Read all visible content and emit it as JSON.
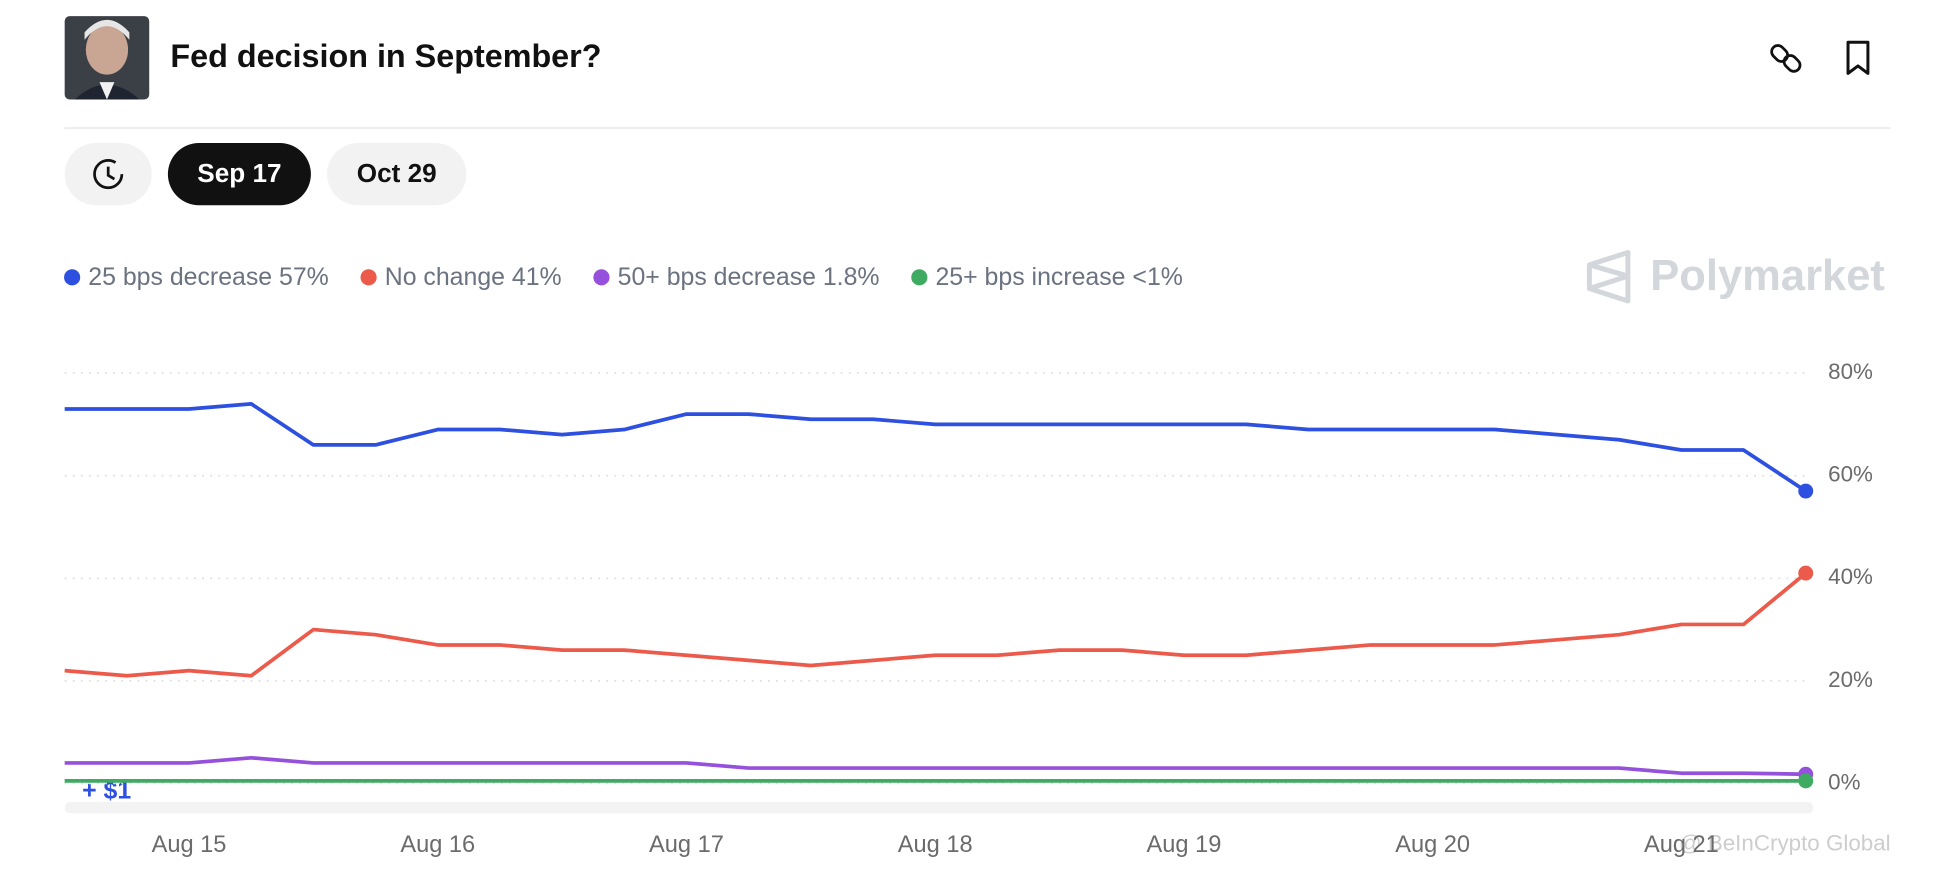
{
  "chart_data": {
    "type": "line",
    "title": "Fed decision in September?",
    "tabs": [
      "Sep 17",
      "Oct 29"
    ],
    "brand": "Polymarket",
    "annotation": "+ $1",
    "watermark": "@ BeInCrypto Global",
    "x": [
      14.5,
      14.75,
      15,
      15.25,
      15.5,
      15.75,
      16,
      16.25,
      16.5,
      16.75,
      17,
      17.25,
      17.5,
      17.75,
      18,
      18.25,
      18.5,
      18.75,
      19,
      19.25,
      19.5,
      19.75,
      20,
      20.25,
      20.5,
      20.75,
      21,
      21.25,
      21.5
    ],
    "xlim": [
      14.5,
      21.5
    ],
    "xticks": [
      {
        "value": 15,
        "label": "Aug 15"
      },
      {
        "value": 16,
        "label": "Aug 16"
      },
      {
        "value": 17,
        "label": "Aug 17"
      },
      {
        "value": 18,
        "label": "Aug 18"
      },
      {
        "value": 19,
        "label": "Aug 19"
      },
      {
        "value": 20,
        "label": "Aug 20"
      },
      {
        "value": 21,
        "label": "Aug 21"
      }
    ],
    "ylim": [
      0,
      80
    ],
    "yticks": [
      {
        "value": 0,
        "label": "0%"
      },
      {
        "value": 20,
        "label": "20%"
      },
      {
        "value": 40,
        "label": "40%"
      },
      {
        "value": 60,
        "label": "60%"
      },
      {
        "value": 80,
        "label": "80%"
      }
    ],
    "grid": true,
    "series": [
      {
        "name": "25 bps decrease 57%",
        "color": "#2e50e0",
        "values": [
          73,
          73,
          73,
          74,
          66,
          66,
          69,
          69,
          68,
          69,
          72,
          72,
          71,
          71,
          70,
          70,
          70,
          70,
          70,
          70,
          69,
          69,
          69,
          69,
          68,
          67,
          65,
          65,
          57
        ]
      },
      {
        "name": "No change 41%",
        "color": "#eb5a4b",
        "values": [
          22,
          21,
          22,
          21,
          30,
          29,
          27,
          27,
          26,
          26,
          25,
          24,
          23,
          24,
          25,
          25,
          26,
          26,
          25,
          25,
          26,
          27,
          27,
          27,
          28,
          29,
          31,
          31,
          41
        ]
      },
      {
        "name": "50+ bps decrease 1.8%",
        "color": "#9550dc",
        "values": [
          4,
          4,
          4,
          5,
          4,
          4,
          4,
          4,
          4,
          4,
          4,
          3,
          3,
          3,
          3,
          3,
          3,
          3,
          3,
          3,
          3,
          3,
          3,
          3,
          3,
          3,
          2,
          2,
          1.8
        ]
      },
      {
        "name": "25+ bps increase <1%",
        "color": "#3faa62",
        "values": [
          0.5,
          0.5,
          0.5,
          0.5,
          0.5,
          0.5,
          0.5,
          0.5,
          0.5,
          0.5,
          0.5,
          0.5,
          0.5,
          0.5,
          0.5,
          0.5,
          0.5,
          0.5,
          0.5,
          0.5,
          0.5,
          0.5,
          0.5,
          0.5,
          0.5,
          0.5,
          0.5,
          0.5,
          0.5
        ]
      }
    ]
  }
}
